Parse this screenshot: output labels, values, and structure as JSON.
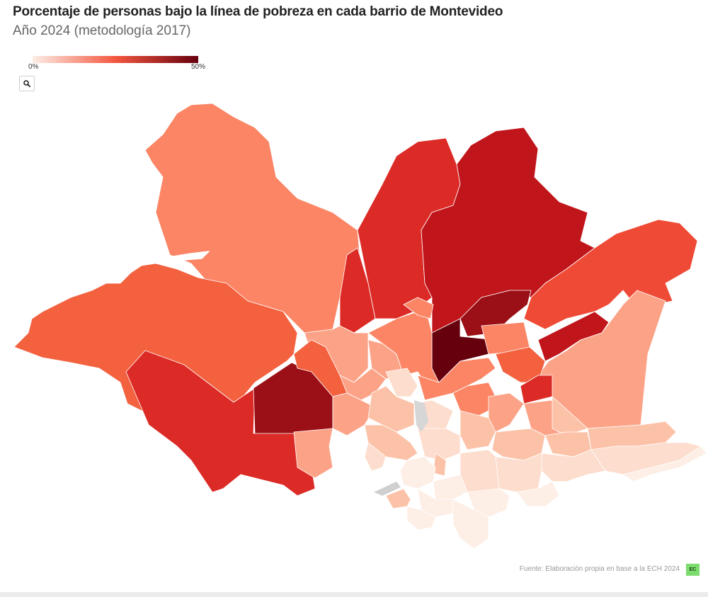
{
  "header": {
    "title": "Porcentaje de personas bajo la línea de pobreza en cada barrio de Montevideo",
    "subtitle": "Año 2024 (metodología 2017)"
  },
  "legend": {
    "min_label": "0%",
    "max_label": "50%",
    "color_low": "#fdeee6",
    "color_mid": "#f3573f",
    "color_high": "#67000d"
  },
  "controls": {
    "zoom_icon": "search-icon"
  },
  "footer": {
    "source": "Fuente: Elaboración propia en base a la ECH 2024",
    "logo_text": "EC",
    "logo_color": "#7ddc6e"
  },
  "chart_data": {
    "type": "choropleth",
    "value_range": [
      0,
      50
    ],
    "unit": "%",
    "colors": {
      "very_dark": "#67000d",
      "dark": "#9b0f16",
      "dark_red": "#c0161b",
      "red": "#dc2b26",
      "red_orange": "#ef4a36",
      "orange_red": "#f3613f",
      "salmon": "#fb8565",
      "light_salmon": "#fca387",
      "peach": "#fcc2a8",
      "pale": "#fdddcd",
      "very_pale": "#fdeee6"
    }
  }
}
